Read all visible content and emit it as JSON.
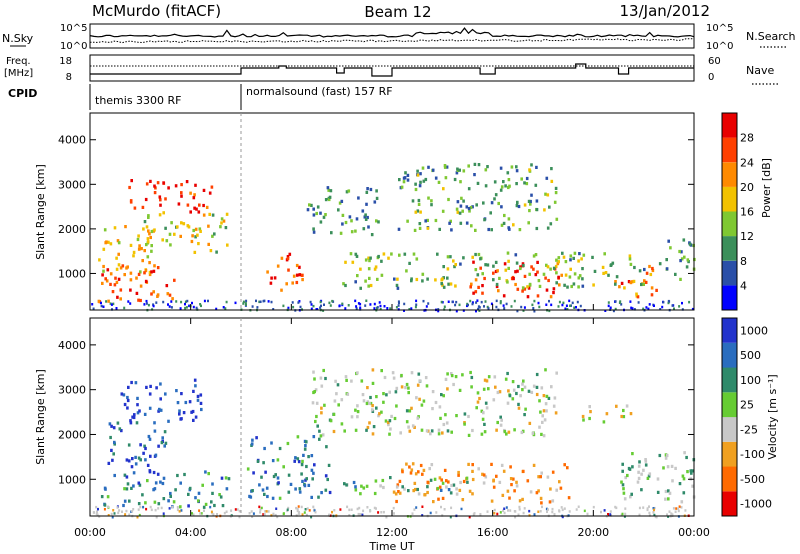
{
  "header": {
    "station": "McMurdo (fitACF)",
    "beam": "Beam 12",
    "date": "13/Jan/2012"
  },
  "summary_panels": {
    "nsky_label": "N.Sky",
    "nsky_tick_top": "10^5",
    "nsky_tick_bottom": "10^0",
    "nsearch_label": "N.Search",
    "nsearch_tick_top": "10^5",
    "nsearch_tick_bottom": "10^0",
    "freq_label_line1": "Freq.",
    "freq_label_line2": "[MHz]",
    "freq_ticks": [
      "18",
      "8"
    ],
    "nave_label": "Nave",
    "nave_ticks": [
      "60",
      "0"
    ],
    "cpid_label": "CPID",
    "cpid_segments": [
      {
        "label": "themis 3300 RF",
        "start_hour": 0
      },
      {
        "label": "normalsound (fast) 157 RF",
        "start_hour": 6
      }
    ]
  },
  "colors": {
    "power_scale": [
      "#0000ff",
      "#2a4fa8",
      "#3b8f5a",
      "#7fc832",
      "#f2c200",
      "#ff8a00",
      "#ff4000",
      "#e80000"
    ],
    "velocity_scale": [
      "#2233cc",
      "#2a6dbf",
      "#2f8a6a",
      "#66cc33",
      "#c8c8c8",
      "#f0a020",
      "#ff6a00",
      "#e80000"
    ],
    "ground_scatter": "#c8c8c8"
  },
  "chart_data": [
    {
      "type": "heatmap",
      "title": "",
      "xlabel": "Time UT",
      "ylabel": "Slant Range [km]",
      "x_tick_labels": [
        "00:00",
        "04:00",
        "08:00",
        "12:00",
        "16:00",
        "20:00",
        "00:00"
      ],
      "x_range_hours": [
        0,
        24
      ],
      "y_tick_labels": [
        "1000",
        "2000",
        "3000",
        "4000"
      ],
      "ylim": [
        180,
        4600
      ],
      "colorbar_label": "Power [dB]",
      "colorbar_ticks": [
        "4",
        "8",
        "12",
        "16",
        "20",
        "24",
        "28"
      ],
      "colorbar_range": [
        0,
        32
      ],
      "regions": [
        {
          "t0": 1.5,
          "t1": 4.8,
          "r0": 2400,
          "r1": 3150,
          "level": 0.9
        },
        {
          "t0": 0.3,
          "t1": 2.5,
          "r0": 1000,
          "r1": 2100,
          "level": 0.55
        },
        {
          "t0": 0.3,
          "t1": 3.5,
          "r0": 400,
          "r1": 1300,
          "level": 0.8
        },
        {
          "t0": 2.0,
          "t1": 5.5,
          "r0": 1500,
          "r1": 2400,
          "level": 0.5
        },
        {
          "t0": 7.0,
          "t1": 8.5,
          "r0": 600,
          "r1": 1500,
          "level": 0.85
        },
        {
          "t0": 8.6,
          "t1": 11.5,
          "r0": 1900,
          "r1": 3000,
          "level": 0.3
        },
        {
          "t0": 12.2,
          "t1": 18.5,
          "r0": 2000,
          "r1": 3500,
          "level": 0.35
        },
        {
          "t0": 15.0,
          "t1": 18.8,
          "r0": 500,
          "r1": 1300,
          "level": 0.85
        },
        {
          "t0": 20.8,
          "t1": 22.5,
          "r0": 500,
          "r1": 1200,
          "level": 0.75
        },
        {
          "t0": 10.0,
          "t1": 22.0,
          "r0": 700,
          "r1": 1500,
          "level": 0.4
        },
        {
          "t0": 22.5,
          "t1": 24.0,
          "r0": 900,
          "r1": 1800,
          "level": 0.3
        }
      ]
    },
    {
      "type": "heatmap",
      "title": "",
      "xlabel": "Time UT",
      "ylabel": "Slant Range [km]",
      "x_tick_labels": [
        "00:00",
        "04:00",
        "08:00",
        "12:00",
        "16:00",
        "20:00",
        "00:00"
      ],
      "x_range_hours": [
        0,
        24
      ],
      "y_tick_labels": [
        "1000",
        "2000",
        "3000",
        "4000"
      ],
      "ylim": [
        180,
        4600
      ],
      "colorbar_label": "Velocity [m s⁻¹]",
      "colorbar_ticks": [
        "1000",
        "500",
        "100",
        "25",
        "-25",
        "-100",
        "-500",
        "-1000"
      ],
      "colorbar_range": [
        -1000,
        1000
      ],
      "regions": [
        {
          "t0": 1.2,
          "t1": 4.5,
          "r0": 2300,
          "r1": 3250,
          "level": 0.05
        },
        {
          "t0": 0.5,
          "t1": 3.0,
          "r0": 1200,
          "r1": 2300,
          "level": 0.15
        },
        {
          "t0": 0.3,
          "t1": 5.5,
          "r0": 400,
          "r1": 1200,
          "level": 0.25
        },
        {
          "t0": 6.2,
          "t1": 9.5,
          "r0": 600,
          "r1": 2000,
          "level": 0.25
        },
        {
          "t0": 8.8,
          "t1": 18.5,
          "r0": 2000,
          "r1": 3500,
          "level": 0.5
        },
        {
          "t0": 12.0,
          "t1": 19.0,
          "r0": 500,
          "r1": 1400,
          "level": 0.7
        },
        {
          "t0": 10.0,
          "t1": 15.0,
          "r0": 700,
          "r1": 1100,
          "level": 0.4
        },
        {
          "t0": 19.5,
          "t1": 21.5,
          "r0": 2300,
          "r1": 2700,
          "level": 0.55
        },
        {
          "t0": 21.0,
          "t1": 24.0,
          "r0": 500,
          "r1": 1700,
          "level": 0.45
        }
      ]
    }
  ]
}
